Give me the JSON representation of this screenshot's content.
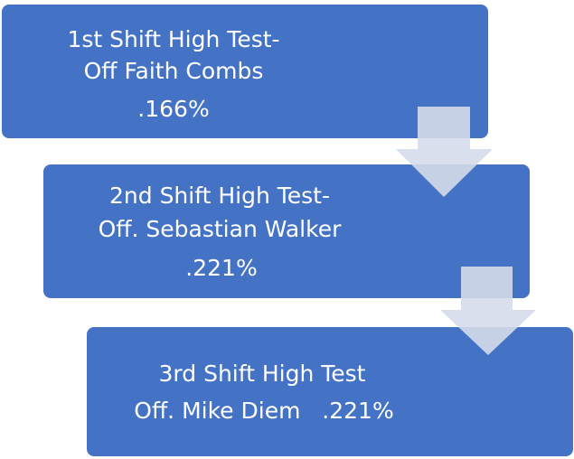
{
  "nodes": [
    {
      "lines": [
        "1st Shift High Test-",
        "Off Faith Combs",
        ".166%"
      ]
    },
    {
      "lines": [
        "2nd Shift High Test-",
        "Off. Sebastian Walker",
        ".221%"
      ]
    },
    {
      "lines": [
        "3rd Shift High Test",
        "Off. Mike Diem   .221%"
      ]
    }
  ]
}
